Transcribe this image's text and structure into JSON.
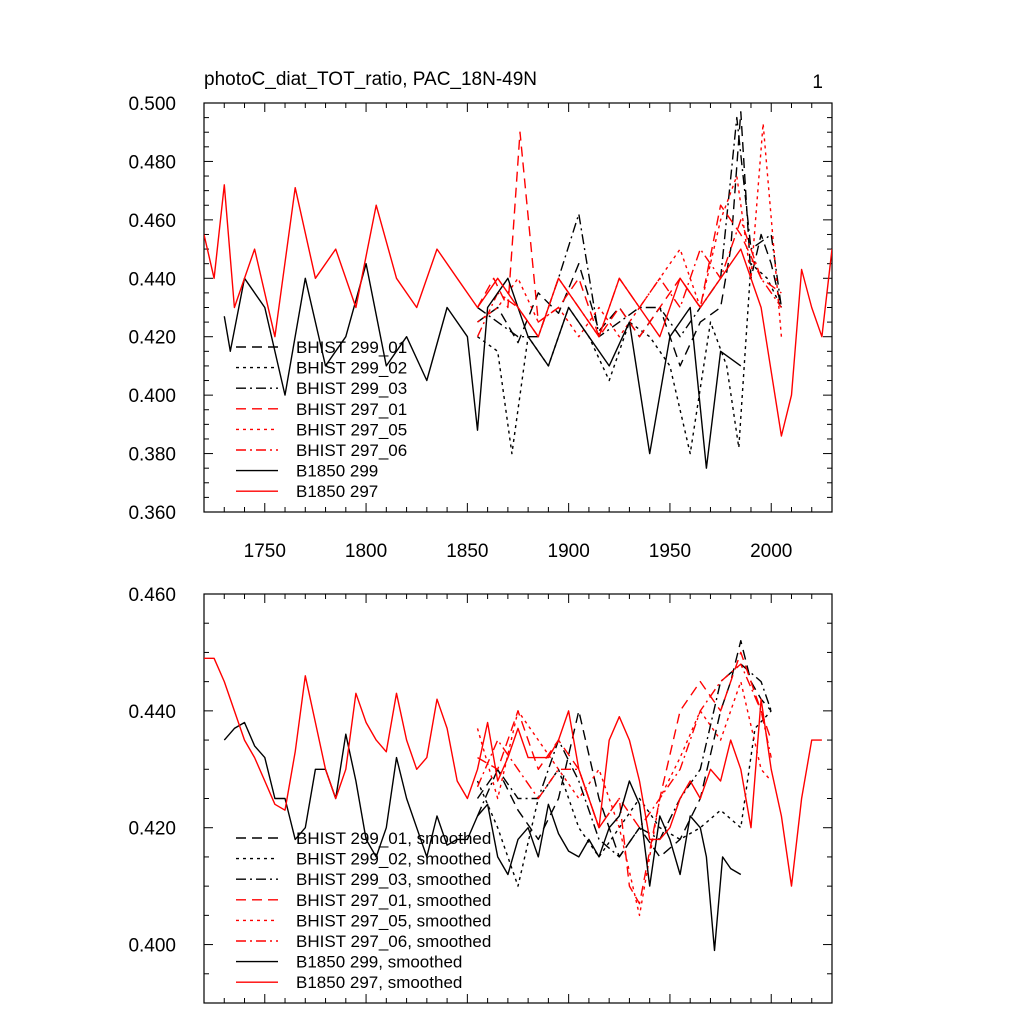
{
  "figure": {
    "title": "photoC_diat_TOT_ratio, PAC_18N-49N",
    "panel_label": "1"
  },
  "chart_data": [
    {
      "type": "line",
      "x_range": [
        1720,
        2030
      ],
      "ylim": [
        0.36,
        0.5
      ],
      "x_ticks": [
        1750,
        1800,
        1850,
        1900,
        1950,
        2000
      ],
      "x_tick_labels": [
        "1750",
        "1800",
        "1850",
        "1900",
        "1950",
        "2000"
      ],
      "y_ticks": [
        0.36,
        0.38,
        0.4,
        0.42,
        0.44,
        0.46,
        0.48,
        0.5
      ],
      "y_tick_labels": [
        "0.360",
        "0.380",
        "0.400",
        "0.420",
        "0.440",
        "0.460",
        "0.480",
        "0.500"
      ],
      "legend_position": "lower-left",
      "grid": false,
      "series": [
        {
          "name": "BHIST 299_01",
          "color": "#000000",
          "dash": "dash",
          "x": [
            1855,
            1865,
            1875,
            1885,
            1895,
            1905,
            1915,
            1925,
            1935,
            1945,
            1955,
            1965,
            1975,
            1980,
            1985,
            1990,
            1995,
            2000,
            2005
          ],
          "y": [
            0.425,
            0.43,
            0.418,
            0.435,
            0.428,
            0.445,
            0.422,
            0.43,
            0.42,
            0.43,
            0.41,
            0.425,
            0.43,
            0.45,
            0.497,
            0.44,
            0.455,
            0.445,
            0.43
          ]
        },
        {
          "name": "BHIST 299_02",
          "color": "#000000",
          "dash": "dot",
          "x": [
            1855,
            1865,
            1872,
            1880,
            1890,
            1900,
            1910,
            1920,
            1930,
            1940,
            1950,
            1960,
            1970,
            1978,
            1984,
            1990,
            1998,
            2005
          ],
          "y": [
            0.42,
            0.415,
            0.38,
            0.42,
            0.41,
            0.43,
            0.42,
            0.405,
            0.425,
            0.42,
            0.41,
            0.38,
            0.425,
            0.41,
            0.382,
            0.445,
            0.44,
            0.43
          ]
        },
        {
          "name": "BHIST 299_03",
          "color": "#000000",
          "dash": "dashdot",
          "x": [
            1855,
            1865,
            1875,
            1885,
            1895,
            1905,
            1915,
            1925,
            1935,
            1945,
            1955,
            1965,
            1975,
            1983,
            1990,
            2000,
            2005
          ],
          "y": [
            0.43,
            0.425,
            0.42,
            0.42,
            0.44,
            0.462,
            0.42,
            0.425,
            0.43,
            0.43,
            0.42,
            0.43,
            0.44,
            0.495,
            0.45,
            0.455,
            0.43
          ]
        },
        {
          "name": "BHIST 297_01",
          "color": "#ff0000",
          "dash": "dash",
          "x": [
            1855,
            1863,
            1870,
            1876,
            1885,
            1895,
            1905,
            1915,
            1925,
            1935,
            1945,
            1955,
            1965,
            1975,
            1985,
            1995,
            2005
          ],
          "y": [
            0.43,
            0.44,
            0.43,
            0.49,
            0.425,
            0.43,
            0.44,
            0.42,
            0.43,
            0.42,
            0.43,
            0.44,
            0.43,
            0.465,
            0.455,
            0.44,
            0.435
          ]
        },
        {
          "name": "BHIST 297_05",
          "color": "#ff0000",
          "dash": "dot",
          "x": [
            1855,
            1865,
            1875,
            1885,
            1895,
            1905,
            1915,
            1925,
            1935,
            1945,
            1955,
            1965,
            1975,
            1983,
            1990,
            1996,
            2005
          ],
          "y": [
            0.425,
            0.43,
            0.44,
            0.425,
            0.43,
            0.42,
            0.43,
            0.42,
            0.43,
            0.44,
            0.45,
            0.43,
            0.46,
            0.475,
            0.44,
            0.493,
            0.42
          ]
        },
        {
          "name": "BHIST 297_06",
          "color": "#ff0000",
          "dash": "dashdot",
          "x": [
            1855,
            1865,
            1875,
            1885,
            1895,
            1905,
            1915,
            1925,
            1935,
            1945,
            1955,
            1965,
            1975,
            1985,
            1995,
            2005
          ],
          "y": [
            0.42,
            0.435,
            0.43,
            0.42,
            0.44,
            0.43,
            0.42,
            0.44,
            0.43,
            0.44,
            0.43,
            0.45,
            0.44,
            0.46,
            0.44,
            0.43
          ]
        },
        {
          "name": "B1850 299",
          "color": "#000000",
          "dash": "solid",
          "x": [
            1730,
            1733,
            1740,
            1750,
            1760,
            1770,
            1780,
            1790,
            1800,
            1810,
            1820,
            1830,
            1840,
            1850,
            1855,
            1860,
            1870,
            1880,
            1890,
            1900,
            1910,
            1920,
            1930,
            1940,
            1950,
            1960,
            1968,
            1975,
            1985
          ],
          "y": [
            0.427,
            0.415,
            0.44,
            0.43,
            0.4,
            0.44,
            0.41,
            0.42,
            0.445,
            0.41,
            0.42,
            0.405,
            0.43,
            0.42,
            0.388,
            0.43,
            0.44,
            0.42,
            0.41,
            0.43,
            0.42,
            0.41,
            0.425,
            0.38,
            0.42,
            0.43,
            0.375,
            0.415,
            0.41
          ]
        },
        {
          "name": "B1850 297",
          "color": "#ff0000",
          "dash": "solid",
          "x": [
            1720,
            1725,
            1730,
            1735,
            1745,
            1755,
            1765,
            1775,
            1785,
            1795,
            1805,
            1815,
            1825,
            1835,
            1845,
            1855,
            1865,
            1875,
            1885,
            1895,
            1905,
            1915,
            1925,
            1935,
            1945,
            1955,
            1965,
            1975,
            1985,
            1995,
            2005,
            2010,
            2015,
            2020,
            2025,
            2030
          ],
          "y": [
            0.455,
            0.44,
            0.472,
            0.43,
            0.45,
            0.42,
            0.471,
            0.44,
            0.45,
            0.43,
            0.465,
            0.44,
            0.43,
            0.45,
            0.44,
            0.43,
            0.44,
            0.43,
            0.42,
            0.44,
            0.43,
            0.42,
            0.44,
            0.43,
            0.42,
            0.44,
            0.43,
            0.44,
            0.45,
            0.43,
            0.386,
            0.4,
            0.443,
            0.43,
            0.42,
            0.45
          ]
        }
      ]
    },
    {
      "type": "line",
      "x_range": [
        1720,
        2030
      ],
      "ylim": [
        0.39,
        0.46
      ],
      "x_ticks": [
        1750,
        1800,
        1850,
        1900,
        1950,
        2000
      ],
      "y_ticks": [
        0.4,
        0.42,
        0.44,
        0.46
      ],
      "y_tick_labels": [
        "0.400",
        "0.420",
        "0.440",
        "0.460"
      ],
      "legend_position": "lower-left",
      "grid": false,
      "series": [
        {
          "name": "BHIST 299_01, smoothed",
          "color": "#000000",
          "dash": "dash",
          "x": [
            1855,
            1865,
            1875,
            1885,
            1895,
            1905,
            1915,
            1925,
            1935,
            1945,
            1955,
            1965,
            1975,
            1980,
            1985,
            1990,
            1995,
            2000
          ],
          "y": [
            0.425,
            0.43,
            0.423,
            0.418,
            0.425,
            0.44,
            0.425,
            0.415,
            0.42,
            0.415,
            0.418,
            0.425,
            0.44,
            0.445,
            0.452,
            0.445,
            0.442,
            0.44
          ]
        },
        {
          "name": "BHIST 299_02, smoothed",
          "color": "#000000",
          "dash": "dot",
          "x": [
            1855,
            1865,
            1875,
            1885,
            1895,
            1905,
            1915,
            1925,
            1935,
            1945,
            1955,
            1965,
            1975,
            1985,
            1992,
            2000
          ],
          "y": [
            0.428,
            0.42,
            0.41,
            0.425,
            0.43,
            0.42,
            0.415,
            0.42,
            0.425,
            0.42,
            0.418,
            0.42,
            0.423,
            0.42,
            0.437,
            0.44
          ]
        },
        {
          "name": "BHIST 299_03, smoothed",
          "color": "#000000",
          "dash": "dashdot",
          "x": [
            1855,
            1865,
            1875,
            1885,
            1895,
            1905,
            1915,
            1925,
            1935,
            1945,
            1955,
            1965,
            1975,
            1985,
            1995,
            2000
          ],
          "y": [
            0.422,
            0.43,
            0.425,
            0.425,
            0.435,
            0.428,
            0.418,
            0.415,
            0.42,
            0.418,
            0.425,
            0.43,
            0.445,
            0.448,
            0.445,
            0.44
          ]
        },
        {
          "name": "BHIST 297_01, smoothed",
          "color": "#ff0000",
          "dash": "dash",
          "x": [
            1855,
            1865,
            1875,
            1885,
            1895,
            1905,
            1915,
            1925,
            1930,
            1935,
            1945,
            1955,
            1965,
            1975,
            1985,
            1995,
            2000
          ],
          "y": [
            0.432,
            0.43,
            0.44,
            0.43,
            0.435,
            0.43,
            0.42,
            0.425,
            0.41,
            0.407,
            0.425,
            0.44,
            0.445,
            0.44,
            0.45,
            0.44,
            0.435
          ]
        },
        {
          "name": "BHIST 297_05, smoothed",
          "color": "#ff0000",
          "dash": "dot",
          "x": [
            1855,
            1865,
            1875,
            1885,
            1895,
            1905,
            1915,
            1925,
            1935,
            1945,
            1955,
            1965,
            1975,
            1985,
            1995,
            2000
          ],
          "y": [
            0.437,
            0.425,
            0.44,
            0.435,
            0.43,
            0.425,
            0.43,
            0.42,
            0.405,
            0.425,
            0.432,
            0.44,
            0.435,
            0.445,
            0.43,
            0.428
          ]
        },
        {
          "name": "BHIST 297_06, smoothed",
          "color": "#ff0000",
          "dash": "dashdot",
          "x": [
            1855,
            1865,
            1875,
            1885,
            1895,
            1905,
            1915,
            1925,
            1935,
            1945,
            1955,
            1965,
            1975,
            1985,
            1995,
            2000
          ],
          "y": [
            0.427,
            0.435,
            0.43,
            0.425,
            0.43,
            0.43,
            0.42,
            0.425,
            0.42,
            0.425,
            0.43,
            0.44,
            0.445,
            0.448,
            0.44,
            0.432
          ]
        },
        {
          "name": "B1850 299, smoothed",
          "color": "#000000",
          "dash": "solid",
          "x": [
            1730,
            1735,
            1740,
            1745,
            1750,
            1755,
            1760,
            1765,
            1770,
            1775,
            1780,
            1785,
            1790,
            1795,
            1800,
            1805,
            1810,
            1815,
            1820,
            1825,
            1830,
            1835,
            1840,
            1845,
            1850,
            1855,
            1860,
            1865,
            1870,
            1875,
            1880,
            1885,
            1890,
            1895,
            1900,
            1905,
            1910,
            1915,
            1920,
            1925,
            1930,
            1935,
            1940,
            1945,
            1950,
            1955,
            1960,
            1965,
            1968,
            1972,
            1976,
            1980,
            1985
          ],
          "y": [
            0.435,
            0.437,
            0.438,
            0.434,
            0.432,
            0.425,
            0.425,
            0.418,
            0.42,
            0.43,
            0.43,
            0.425,
            0.436,
            0.428,
            0.418,
            0.415,
            0.42,
            0.432,
            0.425,
            0.42,
            0.415,
            0.422,
            0.417,
            0.418,
            0.418,
            0.422,
            0.424,
            0.415,
            0.412,
            0.418,
            0.42,
            0.415,
            0.424,
            0.419,
            0.416,
            0.415,
            0.418,
            0.415,
            0.42,
            0.422,
            0.428,
            0.424,
            0.41,
            0.422,
            0.418,
            0.412,
            0.422,
            0.42,
            0.415,
            0.399,
            0.415,
            0.413,
            0.412
          ]
        },
        {
          "name": "B1850 297, smoothed",
          "color": "#ff0000",
          "dash": "solid",
          "x": [
            1720,
            1725,
            1730,
            1735,
            1740,
            1745,
            1750,
            1755,
            1760,
            1765,
            1770,
            1775,
            1780,
            1785,
            1790,
            1795,
            1800,
            1805,
            1810,
            1815,
            1820,
            1825,
            1830,
            1835,
            1840,
            1845,
            1850,
            1855,
            1860,
            1865,
            1870,
            1875,
            1880,
            1885,
            1890,
            1895,
            1900,
            1905,
            1910,
            1915,
            1920,
            1925,
            1930,
            1935,
            1940,
            1945,
            1950,
            1955,
            1960,
            1965,
            1970,
            1975,
            1980,
            1985,
            1990,
            1995,
            2000,
            2005,
            2010,
            2015,
            2020,
            2025
          ],
          "y": [
            0.449,
            0.449,
            0.445,
            0.44,
            0.435,
            0.432,
            0.428,
            0.424,
            0.423,
            0.433,
            0.446,
            0.438,
            0.43,
            0.425,
            0.43,
            0.443,
            0.438,
            0.435,
            0.433,
            0.443,
            0.435,
            0.43,
            0.432,
            0.442,
            0.437,
            0.428,
            0.425,
            0.43,
            0.438,
            0.428,
            0.432,
            0.437,
            0.432,
            0.432,
            0.432,
            0.435,
            0.44,
            0.43,
            0.425,
            0.42,
            0.435,
            0.439,
            0.435,
            0.428,
            0.418,
            0.418,
            0.42,
            0.425,
            0.428,
            0.425,
            0.43,
            0.428,
            0.435,
            0.43,
            0.42,
            0.442,
            0.43,
            0.422,
            0.41,
            0.425,
            0.435,
            0.435
          ]
        }
      ]
    }
  ]
}
